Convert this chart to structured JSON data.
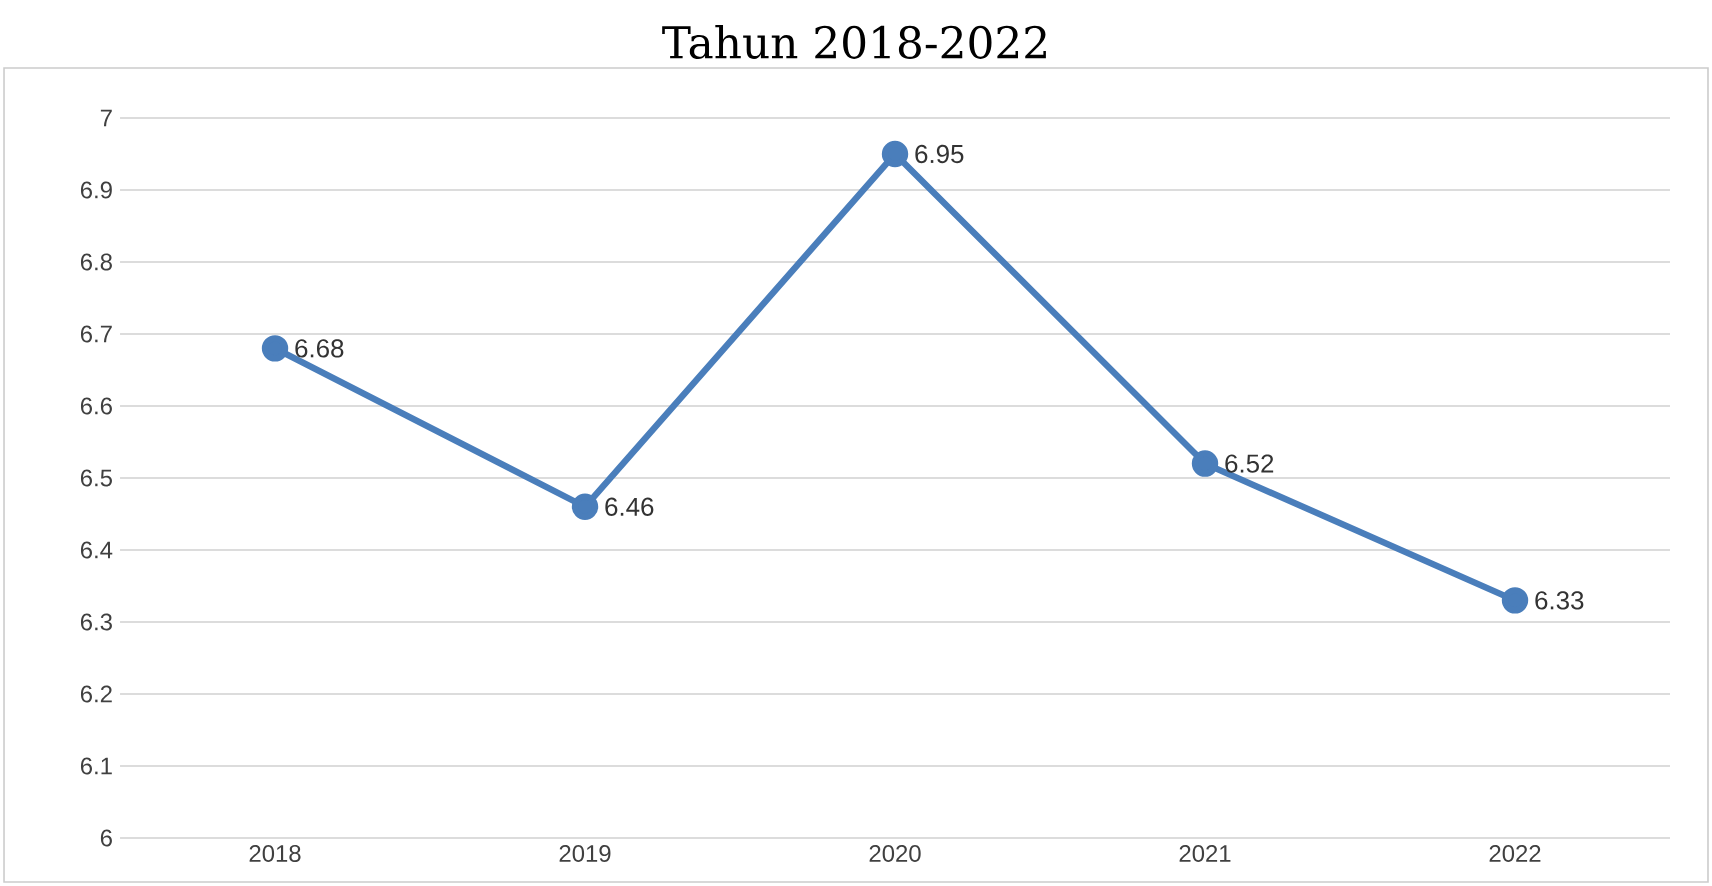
{
  "chart_data": {
    "type": "line",
    "title": "Tahun 2018-2022",
    "categories": [
      "2018",
      "2019",
      "2020",
      "2021",
      "2022"
    ],
    "series": [
      {
        "color": "#4a7ebb",
        "values": [
          6.68,
          6.46,
          6.95,
          6.52,
          6.33
        ]
      }
    ],
    "ylim": [
      6,
      7
    ],
    "yticks": [
      6,
      6.1,
      6.2,
      6.3,
      6.4,
      6.5,
      6.6,
      6.7,
      6.8,
      6.9,
      7
    ],
    "grid": "y",
    "marker": "circle",
    "line_style": "solid",
    "data_labels": true
  }
}
